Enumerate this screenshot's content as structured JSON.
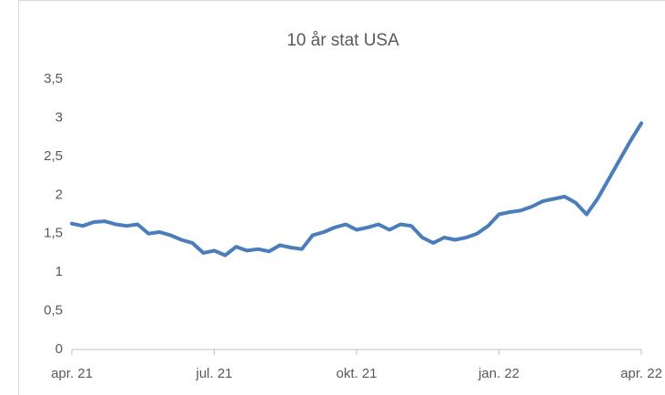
{
  "chart_data": {
    "type": "line",
    "title": "10 år stat USA",
    "categories": [
      "apr. 21",
      null,
      null,
      null,
      null,
      null,
      null,
      null,
      null,
      null,
      null,
      null,
      null,
      "jul. 21",
      null,
      null,
      null,
      null,
      null,
      null,
      null,
      null,
      null,
      null,
      null,
      null,
      "okt. 21",
      null,
      null,
      null,
      null,
      null,
      null,
      null,
      null,
      null,
      null,
      null,
      null,
      "jan. 22",
      null,
      null,
      null,
      null,
      null,
      null,
      null,
      null,
      null,
      null,
      null,
      null,
      "apr. 22"
    ],
    "values": [
      1.63,
      1.6,
      1.65,
      1.66,
      1.62,
      1.6,
      1.62,
      1.5,
      1.52,
      1.48,
      1.42,
      1.38,
      1.25,
      1.28,
      1.22,
      1.33,
      1.28,
      1.3,
      1.27,
      1.35,
      1.32,
      1.3,
      1.48,
      1.52,
      1.58,
      1.62,
      1.55,
      1.58,
      1.62,
      1.55,
      1.62,
      1.6,
      1.45,
      1.38,
      1.45,
      1.42,
      1.45,
      1.5,
      1.6,
      1.75,
      1.78,
      1.8,
      1.85,
      1.92,
      1.95,
      1.98,
      1.9,
      1.75,
      1.95,
      2.2,
      2.45,
      2.7,
      2.93
    ],
    "color": "#4a7ebb",
    "ylim": [
      0,
      3.5
    ],
    "yticks": [
      0,
      {
        "value": 0.5,
        "label": "0,5"
      },
      1,
      {
        "value": 1.5,
        "label": "1,5"
      },
      2,
      {
        "value": 2.5,
        "label": "2,5"
      },
      3,
      {
        "value": 3.5,
        "label": "3,5"
      }
    ],
    "grid": false
  }
}
